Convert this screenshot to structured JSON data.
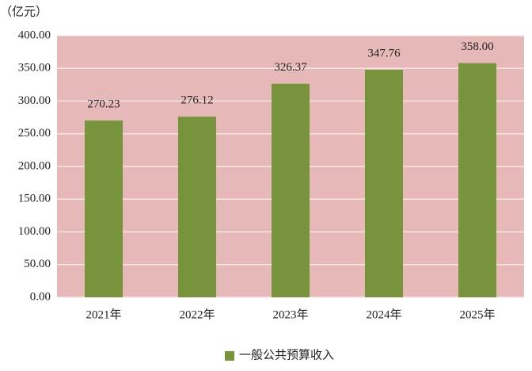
{
  "chart_data": {
    "type": "bar",
    "y_axis_label": "（亿元）",
    "categories": [
      "2021年",
      "2022年",
      "2023年",
      "2024年",
      "2025年"
    ],
    "series": [
      {
        "name": "一般公共预算收入",
        "color": "#77933c",
        "values": [
          270.23,
          276.12,
          326.37,
          347.76,
          358
        ],
        "value_labels": [
          "270.23",
          "276.12",
          "326.37",
          "347.76",
          "358.00"
        ]
      }
    ],
    "ylim": [
      0,
      400
    ],
    "yticks": [
      {
        "value": 0,
        "label": "0.00"
      },
      {
        "value": 50,
        "label": "50.00"
      },
      {
        "value": 100,
        "label": "100.00"
      },
      {
        "value": 150,
        "label": "150.00"
      },
      {
        "value": 200,
        "label": "200.00"
      },
      {
        "value": 250,
        "label": "250.00"
      },
      {
        "value": 300,
        "label": "300.00"
      },
      {
        "value": 350,
        "label": "350.00"
      },
      {
        "value": 400,
        "label": "400.00"
      }
    ],
    "grid": true,
    "plot_background": "#e6b9b8",
    "legend": "bottom"
  }
}
